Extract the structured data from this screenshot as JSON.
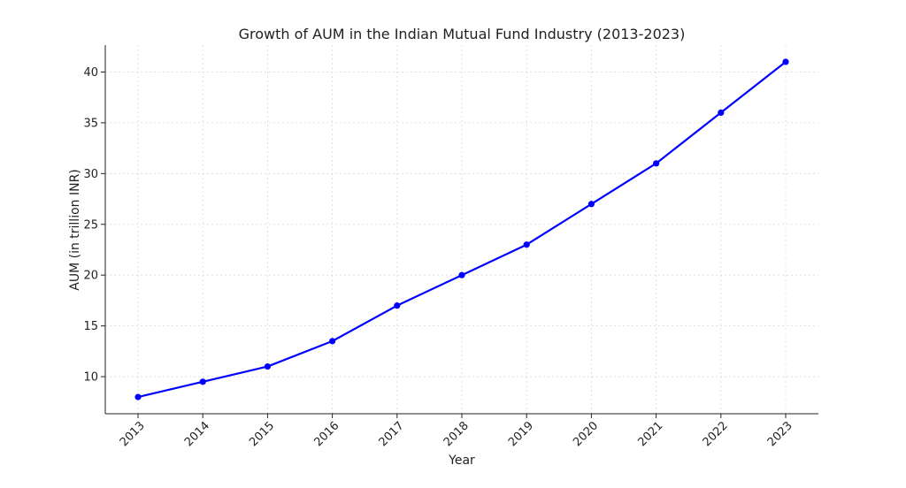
{
  "chart_data": {
    "type": "line",
    "title": "Growth of AUM in the Indian Mutual Fund Industry (2013-2023)",
    "xlabel": "Year",
    "ylabel": "AUM (in trillion INR)",
    "categories": [
      "2013",
      "2014",
      "2015",
      "2016",
      "2017",
      "2018",
      "2019",
      "2020",
      "2021",
      "2022",
      "2023"
    ],
    "series": [
      {
        "values": [
          8,
          9.5,
          11,
          13.5,
          17,
          20,
          23,
          27,
          31,
          36,
          41
        ],
        "color": "#0000ff"
      }
    ],
    "ylim": [
      6.35,
      42.65
    ],
    "yticks": [
      "10",
      "15",
      "20",
      "25",
      "30",
      "35",
      "40"
    ],
    "grid": true,
    "marker": "circle"
  }
}
